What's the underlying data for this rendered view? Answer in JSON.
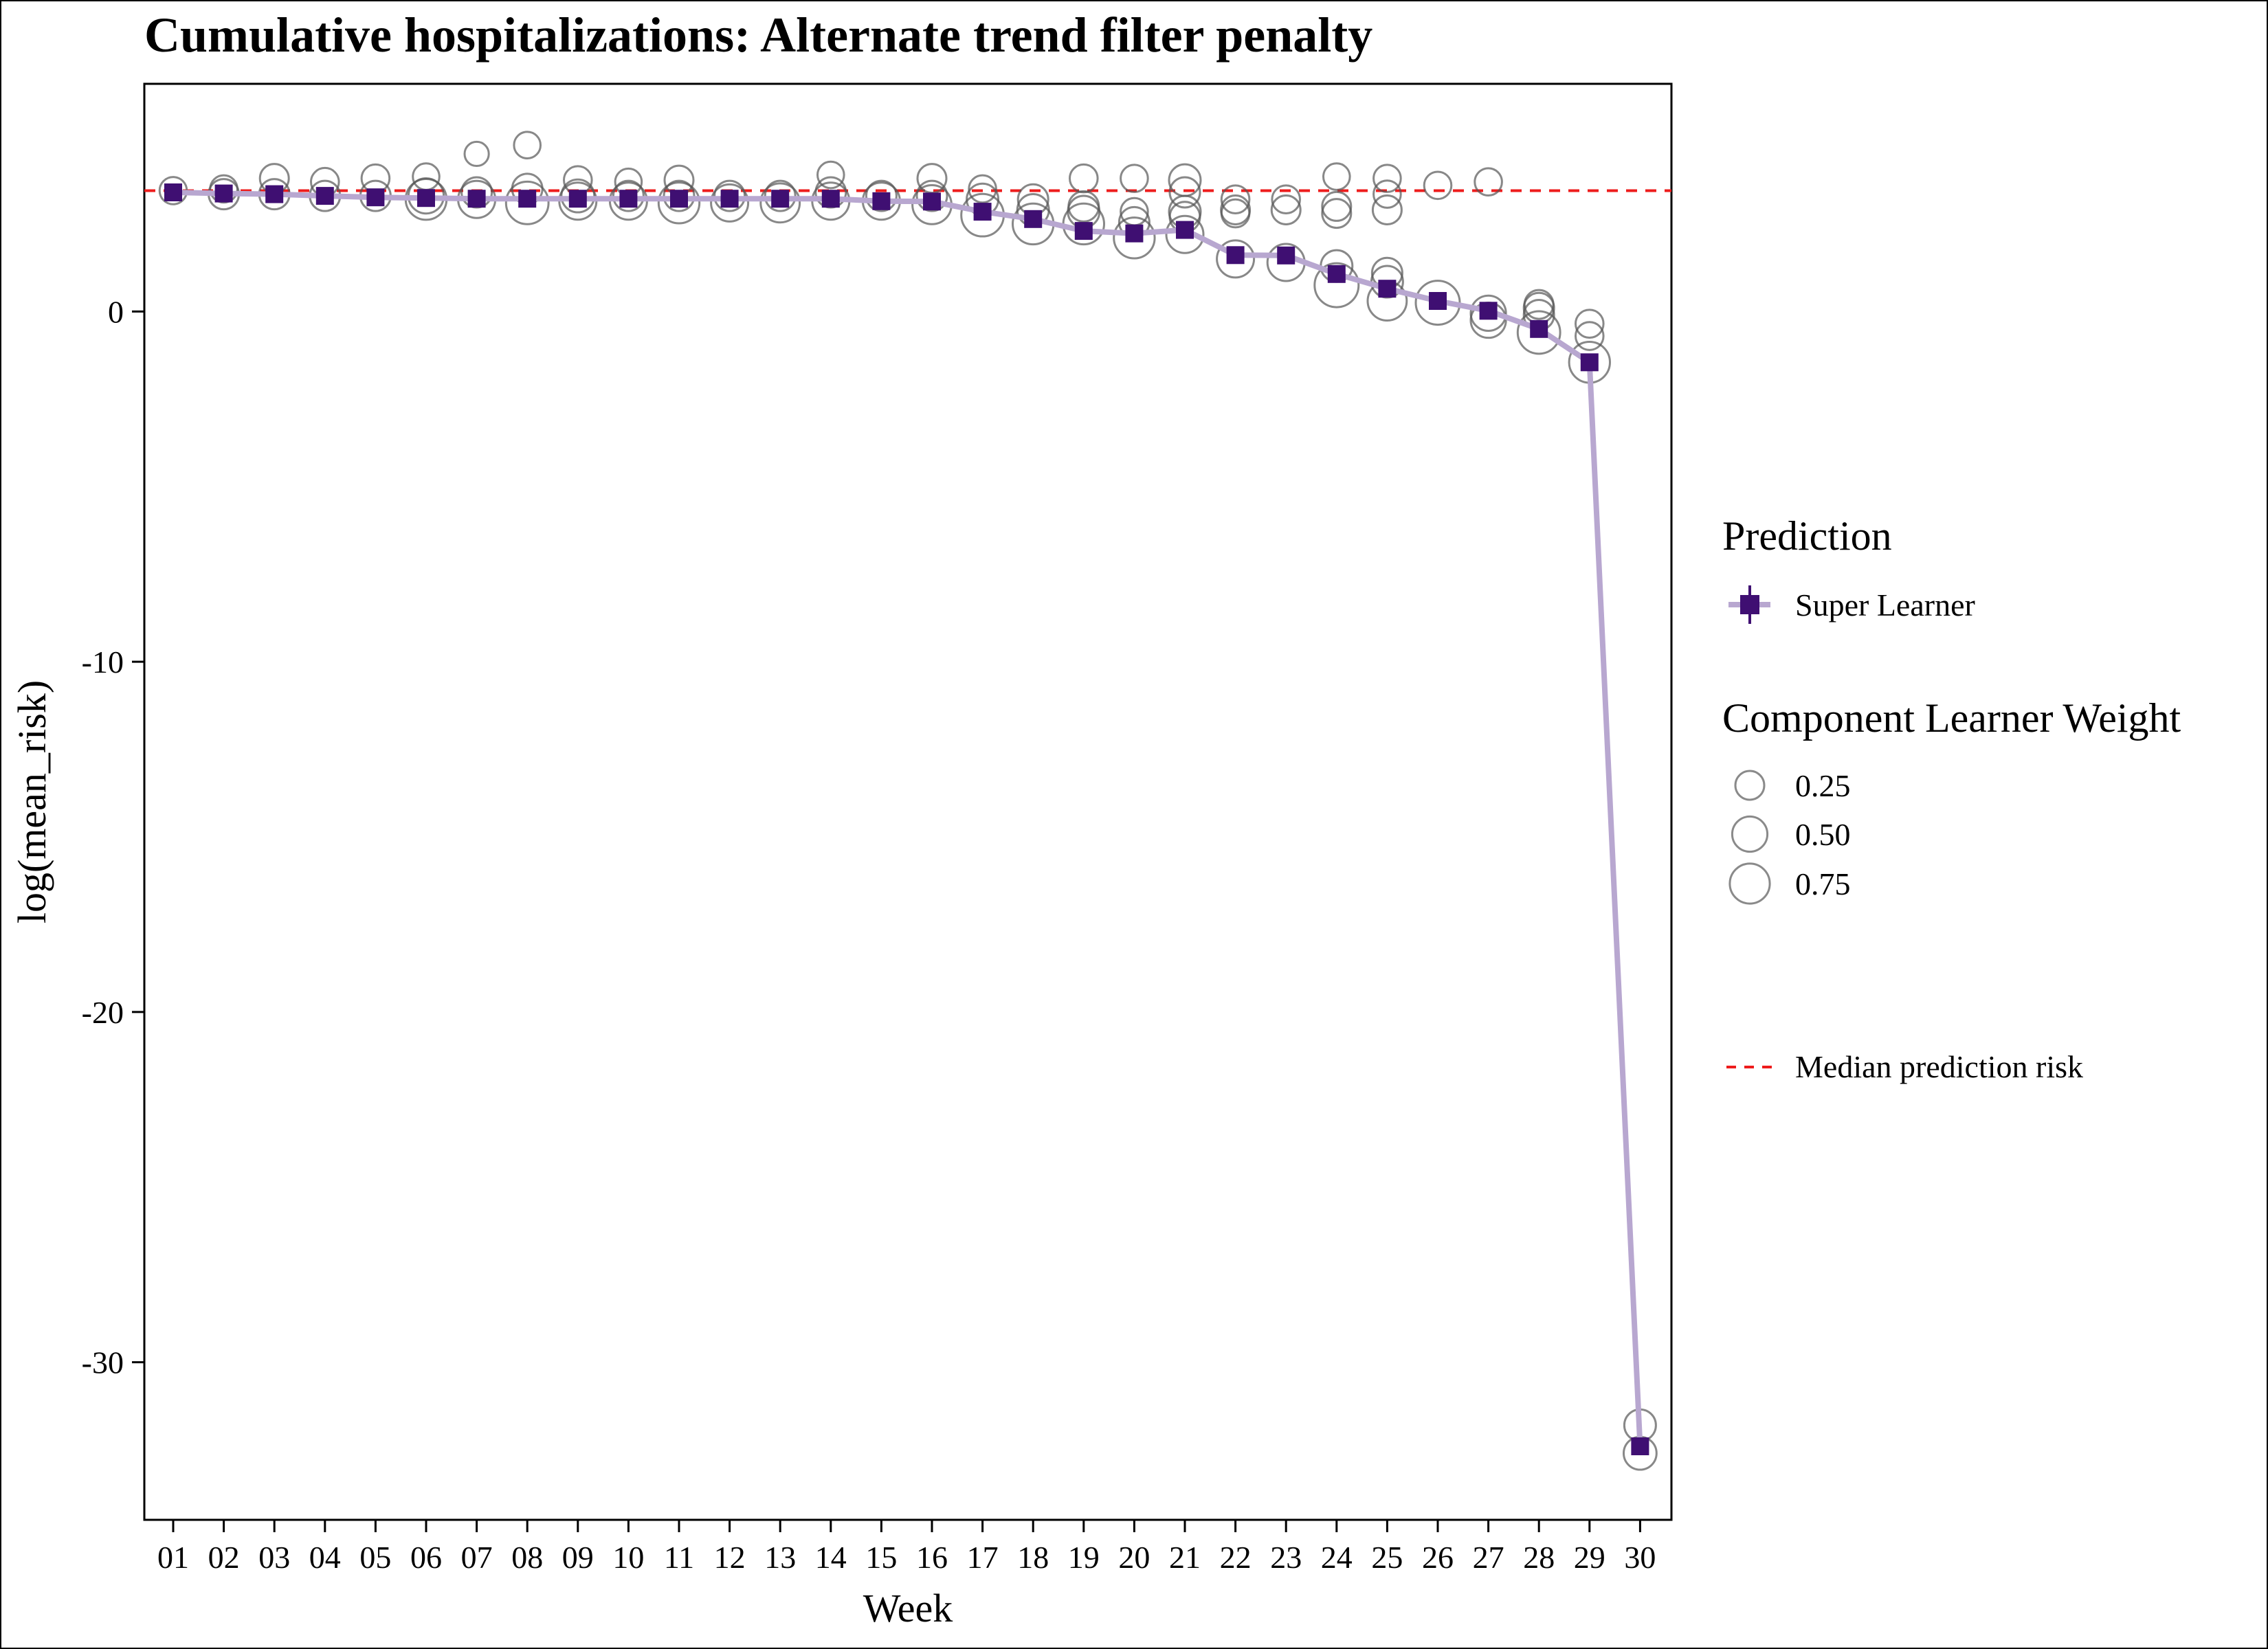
{
  "chart_data": {
    "type": "scatter",
    "title": "Cumulative hospitalizations: Alternate trend filter penalty",
    "xlabel": "Week",
    "ylabel": "log(mean_risk)",
    "categories": [
      "01",
      "02",
      "03",
      "04",
      "05",
      "06",
      "07",
      "08",
      "09",
      "10",
      "11",
      "12",
      "13",
      "14",
      "15",
      "16",
      "17",
      "18",
      "19",
      "20",
      "21",
      "22",
      "23",
      "24",
      "25",
      "26",
      "27",
      "28",
      "29",
      "30"
    ],
    "ylim": [
      -34.5,
      6.5
    ],
    "yticks": [
      0,
      -10,
      -20,
      -30
    ],
    "ytick_labels": [
      "0",
      "-10",
      "-20",
      "-30"
    ],
    "grid": false,
    "legend_position": "right",
    "series": [
      {
        "name": "Super Learner",
        "color": "#3f0f72",
        "line_color": "#b8a7d0",
        "values": [
          3.4,
          3.37,
          3.35,
          3.3,
          3.26,
          3.24,
          3.22,
          3.22,
          3.22,
          3.22,
          3.22,
          3.22,
          3.22,
          3.22,
          3.15,
          3.14,
          2.85,
          2.64,
          2.3,
          2.23,
          2.33,
          1.61,
          1.6,
          1.07,
          0.65,
          0.3,
          0.02,
          -0.5,
          -1.45,
          -32.4
        ]
      }
    ],
    "components": [
      [
        [
          3.45,
          0.2
        ]
      ],
      [
        [
          3.5,
          0.2
        ],
        [
          3.35,
          0.3
        ]
      ],
      [
        [
          3.8,
          0.25
        ],
        [
          3.35,
          0.3
        ]
      ],
      [
        [
          3.7,
          0.22
        ],
        [
          3.3,
          0.3
        ]
      ],
      [
        [
          3.8,
          0.22
        ],
        [
          3.3,
          0.3
        ]
      ],
      [
        [
          3.85,
          0.18
        ],
        [
          3.3,
          0.5
        ],
        [
          3.2,
          0.8
        ]
      ],
      [
        [
          4.5,
          0.12
        ],
        [
          3.4,
          0.3
        ],
        [
          3.2,
          0.6
        ]
      ],
      [
        [
          4.75,
          0.18
        ],
        [
          3.5,
          0.3
        ],
        [
          3.1,
          0.9
        ]
      ],
      [
        [
          3.75,
          0.22
        ],
        [
          3.3,
          0.4
        ],
        [
          3.15,
          0.6
        ]
      ],
      [
        [
          3.7,
          0.18
        ],
        [
          3.3,
          0.3
        ],
        [
          3.15,
          0.6
        ]
      ],
      [
        [
          3.75,
          0.25
        ],
        [
          3.3,
          0.3
        ],
        [
          3.1,
          0.8
        ]
      ],
      [
        [
          3.3,
          0.3
        ],
        [
          3.1,
          0.6
        ]
      ],
      [
        [
          3.3,
          0.3
        ],
        [
          3.1,
          0.7
        ]
      ],
      [
        [
          3.9,
          0.18
        ],
        [
          3.4,
          0.3
        ],
        [
          3.15,
          0.6
        ]
      ],
      [
        [
          3.3,
          0.3
        ],
        [
          3.15,
          0.6
        ]
      ],
      [
        [
          3.8,
          0.25
        ],
        [
          3.3,
          0.3
        ],
        [
          3.05,
          0.7
        ]
      ],
      [
        [
          3.5,
          0.2
        ],
        [
          3.2,
          0.35
        ],
        [
          2.75,
          0.9
        ]
      ],
      [
        [
          3.2,
          0.3
        ],
        [
          2.9,
          0.35
        ],
        [
          2.5,
          0.8
        ]
      ],
      [
        [
          3.8,
          0.22
        ],
        [
          3.0,
          0.3
        ],
        [
          2.85,
          0.35
        ],
        [
          2.5,
          0.8
        ]
      ],
      [
        [
          3.8,
          0.2
        ],
        [
          2.85,
          0.2
        ],
        [
          2.55,
          0.3
        ],
        [
          2.1,
          0.8
        ]
      ],
      [
        [
          3.75,
          0.35
        ],
        [
          3.4,
          0.3
        ],
        [
          2.85,
          0.35
        ],
        [
          2.7,
          0.3
        ],
        [
          2.2,
          0.6
        ]
      ],
      [
        [
          3.2,
          0.22
        ],
        [
          2.9,
          0.25
        ],
        [
          2.8,
          0.22
        ],
        [
          1.5,
          0.6
        ]
      ],
      [
        [
          3.2,
          0.22
        ],
        [
          2.9,
          0.25
        ],
        [
          1.4,
          0.6
        ]
      ],
      [
        [
          3.85,
          0.18
        ],
        [
          3.0,
          0.25
        ],
        [
          2.8,
          0.25
        ],
        [
          1.3,
          0.35
        ],
        [
          0.75,
          1.0
        ]
      ],
      [
        [
          3.8,
          0.2
        ],
        [
          3.35,
          0.2
        ],
        [
          2.9,
          0.25
        ],
        [
          1.1,
          0.3
        ],
        [
          0.85,
          0.35
        ],
        [
          0.3,
          0.7
        ]
      ],
      [
        [
          3.6,
          0.2
        ],
        [
          0.25,
          1.0
        ]
      ],
      [
        [
          3.7,
          0.2
        ],
        [
          -0.05,
          0.5
        ],
        [
          -0.25,
          0.5
        ]
      ],
      [
        [
          0.2,
          0.25
        ],
        [
          0.1,
          0.3
        ],
        [
          -0.1,
          0.3
        ],
        [
          -0.6,
          0.9
        ]
      ],
      [
        [
          -0.35,
          0.22
        ],
        [
          -0.7,
          0.22
        ],
        [
          -1.45,
          0.8
        ]
      ],
      [
        [
          -31.8,
          0.35
        ],
        [
          -32.6,
          0.4
        ]
      ]
    ],
    "reference_line": {
      "label": "Median prediction risk",
      "value": 3.45,
      "color": "#ee1c1c",
      "style": "dashed"
    },
    "legend": {
      "prediction_title": "Prediction",
      "prediction_label": "Super Learner",
      "weight_title": "Component Learner Weight",
      "weight_labels": [
        "0.25",
        "0.50",
        "0.75"
      ],
      "weight_values": [
        0.25,
        0.5,
        0.75
      ],
      "reference_label": "Median prediction risk"
    }
  }
}
